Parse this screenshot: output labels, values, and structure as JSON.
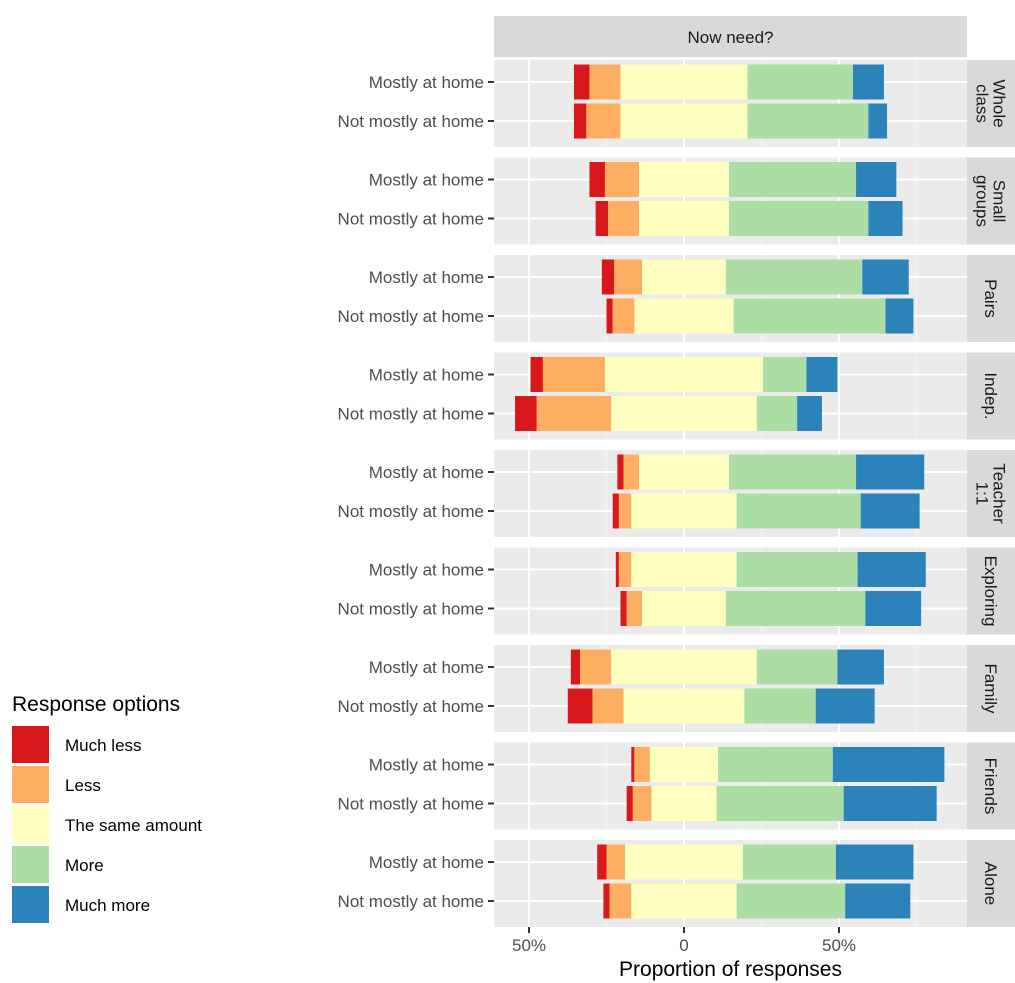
{
  "chart_data": {
    "type": "bar",
    "subtype": "diverging-stacked-horizontal",
    "facet_col_label": "Now need?",
    "xlabel": "Proportion of responses",
    "x_ticks": [
      "50%",
      "0",
      "50%"
    ],
    "x_tick_values": [
      -50,
      0,
      50
    ],
    "xlim": [
      -60,
      90
    ],
    "categories": [
      "Mostly at home",
      "Not mostly at home"
    ],
    "legend": {
      "title": "Response options",
      "position": "left",
      "items": [
        {
          "label": "Much less",
          "color": "#d7191c"
        },
        {
          "label": "Less",
          "color": "#fdae61"
        },
        {
          "label": "The same amount",
          "color": "#ffffbf"
        },
        {
          "label": "More",
          "color": "#abdda4"
        },
        {
          "label": "Much more",
          "color": "#2b83ba"
        }
      ]
    },
    "panels": [
      {
        "label": "Whole class",
        "rows": [
          {
            "category": "Mostly at home",
            "values": [
              5,
              10,
              41,
              34,
              10
            ]
          },
          {
            "category": "Not mostly at home",
            "values": [
              4,
              11,
              41,
              39,
              6
            ]
          }
        ]
      },
      {
        "label": "Small groups",
        "rows": [
          {
            "category": "Mostly at home",
            "values": [
              5,
              11,
              29,
              41,
              13
            ]
          },
          {
            "category": "Not mostly at home",
            "values": [
              4,
              10,
              29,
              45,
              11
            ]
          }
        ]
      },
      {
        "label": "Pairs",
        "rows": [
          {
            "category": "Mostly at home",
            "values": [
              4,
              9,
              27,
              44,
              15
            ]
          },
          {
            "category": "Not mostly at home",
            "values": [
              2,
              7,
              32,
              49,
              9
            ]
          }
        ]
      },
      {
        "label": "Indep.",
        "rows": [
          {
            "category": "Mostly at home",
            "values": [
              4,
              20,
              51,
              14,
              10
            ]
          },
          {
            "category": "Not mostly at home",
            "values": [
              7,
              24,
              47,
              13,
              8
            ]
          }
        ]
      },
      {
        "label": "Teacher 1:1",
        "rows": [
          {
            "category": "Mostly at home",
            "values": [
              2,
              5,
              29,
              41,
              22
            ]
          },
          {
            "category": "Not mostly at home",
            "values": [
              2,
              4,
              34,
              40,
              19
            ]
          }
        ]
      },
      {
        "label": "Exploring",
        "rows": [
          {
            "category": "Mostly at home",
            "values": [
              1,
              4,
              34,
              39,
              22
            ]
          },
          {
            "category": "Not mostly at home",
            "values": [
              2,
              5,
              27,
              45,
              18
            ]
          }
        ]
      },
      {
        "label": "Family",
        "rows": [
          {
            "category": "Mostly at home",
            "values": [
              3,
              10,
              47,
              26,
              15
            ]
          },
          {
            "category": "Not mostly at home",
            "values": [
              8,
              10,
              39,
              23,
              19
            ]
          }
        ]
      },
      {
        "label": "Friends",
        "rows": [
          {
            "category": "Mostly at home",
            "values": [
              1,
              5,
              22,
              37,
              36
            ]
          },
          {
            "category": "Not mostly at home",
            "values": [
              2,
              6,
              21,
              41,
              30
            ]
          }
        ]
      },
      {
        "label": "Alone",
        "rows": [
          {
            "category": "Mostly at home",
            "values": [
              3,
              6,
              38,
              30,
              25
            ]
          },
          {
            "category": "Not mostly at home",
            "values": [
              2,
              7,
              34,
              35,
              21
            ]
          }
        ]
      }
    ]
  }
}
